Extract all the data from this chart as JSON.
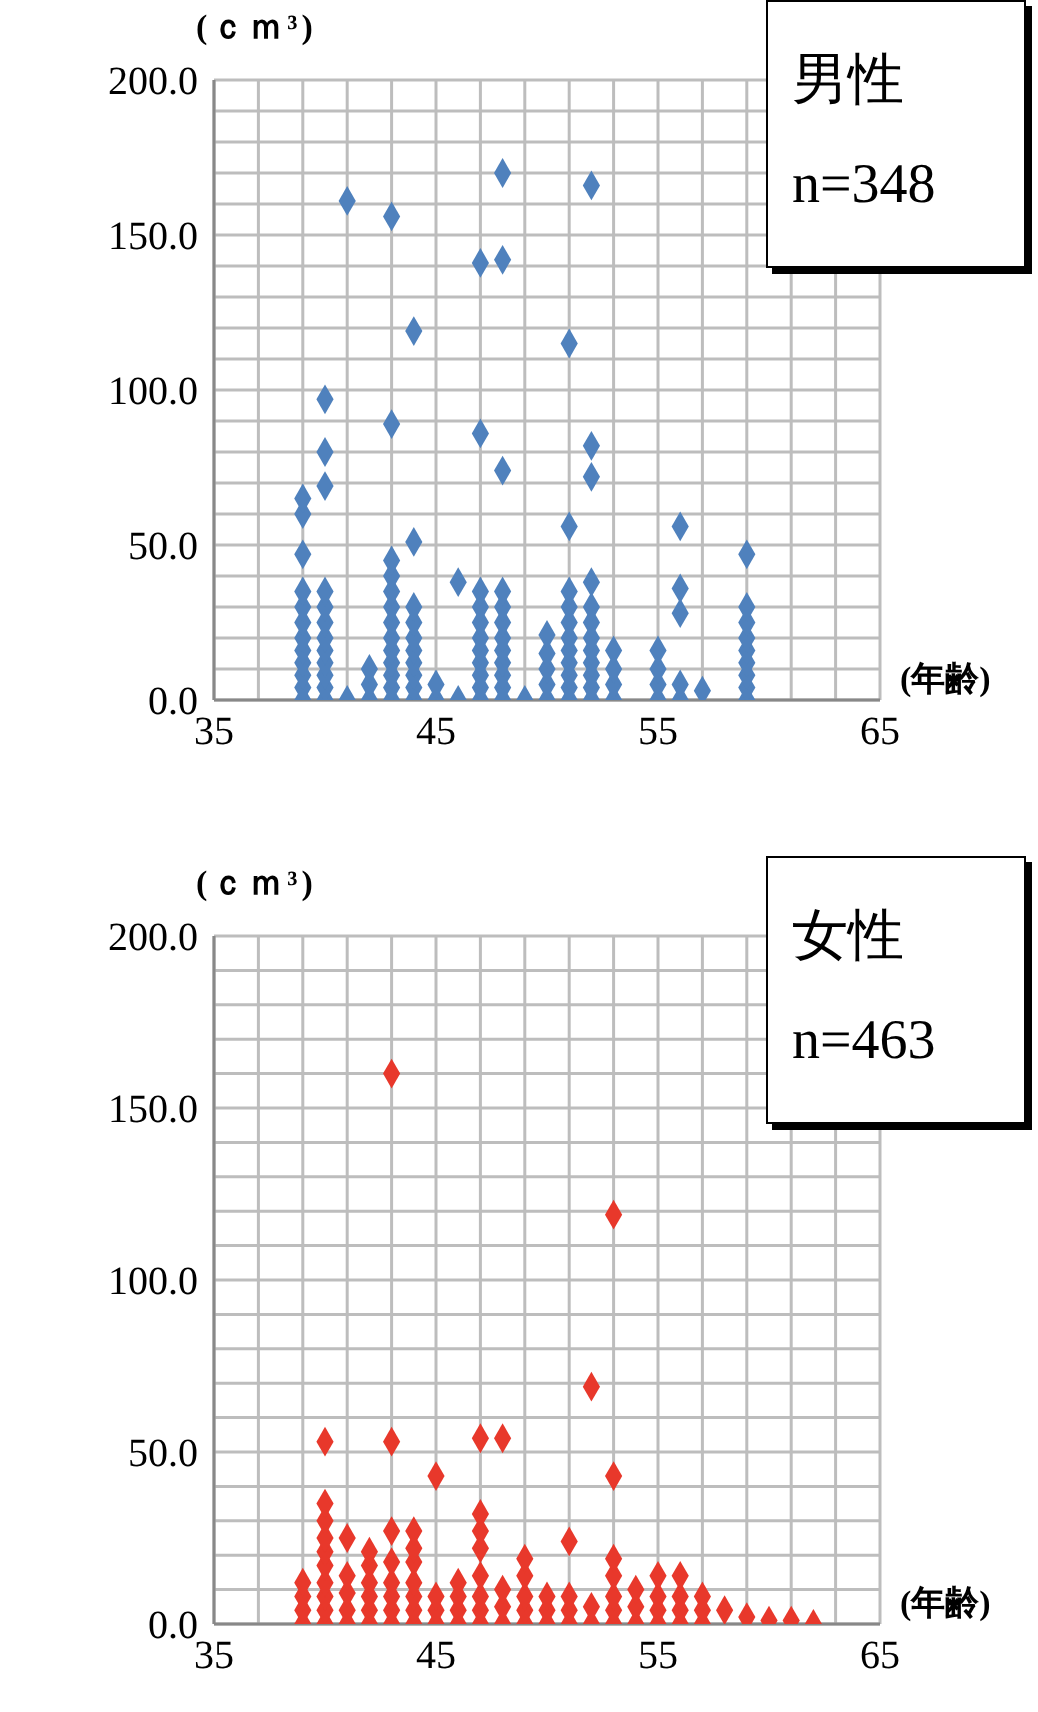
{
  "chart_data": [
    {
      "type": "scatter",
      "ylabel": "(ｃｍ³)",
      "xlabel": "(年齢)",
      "annotations": [
        "男性",
        "n=348"
      ],
      "marker": "diamond",
      "grid": true,
      "xlim": [
        35,
        65
      ],
      "xticks": [
        35,
        {
          "value": 37,
          "label": null
        },
        {
          "value": 39,
          "label": null
        },
        {
          "value": 41,
          "label": null
        },
        {
          "value": 43,
          "label": null
        },
        45,
        {
          "value": 47,
          "label": null
        },
        {
          "value": 49,
          "label": null
        },
        {
          "value": 51,
          "label": null
        },
        {
          "value": 53,
          "label": null
        },
        55,
        {
          "value": 57,
          "label": null
        },
        {
          "value": 59,
          "label": null
        },
        {
          "value": 61,
          "label": null
        },
        {
          "value": 63,
          "label": null
        },
        65
      ],
      "ylim": [
        0,
        200
      ],
      "yticks": [
        {
          "value": 0,
          "label": "0.0"
        },
        {
          "value": 10,
          "label": null
        },
        {
          "value": 20,
          "label": null
        },
        {
          "value": 30,
          "label": null
        },
        {
          "value": 40,
          "label": null
        },
        {
          "value": 50,
          "label": "50.0"
        },
        {
          "value": 60,
          "label": null
        },
        {
          "value": 70,
          "label": null
        },
        {
          "value": 80,
          "label": null
        },
        {
          "value": 90,
          "label": null
        },
        {
          "value": 100,
          "label": "100.0"
        },
        {
          "value": 110,
          "label": null
        },
        {
          "value": 120,
          "label": null
        },
        {
          "value": 130,
          "label": null
        },
        {
          "value": 140,
          "label": null
        },
        {
          "value": 150,
          "label": "150.0"
        },
        {
          "value": 160,
          "label": null
        },
        {
          "value": 170,
          "label": null
        },
        {
          "value": 180,
          "label": null
        },
        {
          "value": 190,
          "label": null
        },
        {
          "value": 200,
          "label": "200.0"
        }
      ],
      "series": [
        {
          "color": "#4f81bd",
          "x": [
            39,
            39,
            39,
            39,
            39,
            39,
            39,
            39,
            39,
            39,
            39,
            39,
            40,
            40,
            40,
            40,
            40,
            40,
            40,
            40,
            40,
            40,
            40,
            40,
            41,
            41,
            42,
            42,
            42,
            43,
            43,
            43,
            43,
            43,
            43,
            43,
            43,
            43,
            43,
            43,
            43,
            43,
            44,
            44,
            44,
            44,
            44,
            44,
            44,
            44,
            44,
            44,
            45,
            45,
            46,
            46,
            47,
            47,
            47,
            47,
            47,
            47,
            47,
            47,
            47,
            47,
            47,
            48,
            48,
            48,
            48,
            48,
            48,
            48,
            48,
            48,
            48,
            48,
            48,
            49,
            50,
            50,
            50,
            50,
            50,
            51,
            51,
            51,
            51,
            51,
            51,
            51,
            51,
            51,
            51,
            51,
            52,
            52,
            52,
            52,
            52,
            52,
            52,
            52,
            52,
            52,
            52,
            52,
            53,
            53,
            53,
            53,
            55,
            55,
            55,
            55,
            56,
            56,
            56,
            56,
            56,
            57,
            59,
            59,
            59,
            59,
            59,
            59,
            59,
            59,
            59
          ],
          "values": [
            0,
            4,
            8,
            12,
            16,
            20,
            25,
            30,
            35,
            47,
            60,
            65,
            0,
            4,
            8,
            12,
            16,
            20,
            25,
            30,
            35,
            69,
            80,
            97,
            0,
            161,
            0,
            5,
            10,
            0,
            4,
            8,
            12,
            16,
            20,
            25,
            30,
            35,
            40,
            45,
            89,
            156,
            0,
            4,
            8,
            12,
            16,
            20,
            25,
            30,
            51,
            119,
            0,
            5,
            0,
            38,
            0,
            4,
            8,
            12,
            16,
            20,
            25,
            30,
            35,
            86,
            141,
            0,
            4,
            8,
            12,
            16,
            20,
            25,
            30,
            35,
            74,
            142,
            170,
            0,
            0,
            5,
            10,
            15,
            21,
            0,
            4,
            8,
            12,
            16,
            20,
            25,
            30,
            35,
            56,
            115,
            0,
            4,
            8,
            12,
            16,
            20,
            25,
            30,
            38,
            72,
            82,
            166,
            0,
            5,
            10,
            16,
            0,
            5,
            10,
            16,
            0,
            5,
            28,
            36,
            56,
            3,
            0,
            4,
            8,
            12,
            16,
            20,
            25,
            30,
            47
          ]
        }
      ]
    },
    {
      "type": "scatter",
      "ylabel": "(ｃｍ³)",
      "xlabel": "(年齢)",
      "annotations": [
        "女性",
        "n=463"
      ],
      "marker": "diamond",
      "grid": true,
      "xlim": [
        35,
        65
      ],
      "xticks": [
        35,
        {
          "value": 37,
          "label": null
        },
        {
          "value": 39,
          "label": null
        },
        {
          "value": 41,
          "label": null
        },
        {
          "value": 43,
          "label": null
        },
        45,
        {
          "value": 47,
          "label": null
        },
        {
          "value": 49,
          "label": null
        },
        {
          "value": 51,
          "label": null
        },
        {
          "value": 53,
          "label": null
        },
        55,
        {
          "value": 57,
          "label": null
        },
        {
          "value": 59,
          "label": null
        },
        {
          "value": 61,
          "label": null
        },
        {
          "value": 63,
          "label": null
        },
        65
      ],
      "ylim": [
        0,
        200
      ],
      "yticks": [
        {
          "value": 0,
          "label": "0.0"
        },
        {
          "value": 10,
          "label": null
        },
        {
          "value": 20,
          "label": null
        },
        {
          "value": 30,
          "label": null
        },
        {
          "value": 40,
          "label": null
        },
        {
          "value": 50,
          "label": "50.0"
        },
        {
          "value": 60,
          "label": null
        },
        {
          "value": 70,
          "label": null
        },
        {
          "value": 80,
          "label": null
        },
        {
          "value": 90,
          "label": null
        },
        {
          "value": 100,
          "label": "100.0"
        },
        {
          "value": 110,
          "label": null
        },
        {
          "value": 120,
          "label": null
        },
        {
          "value": 130,
          "label": null
        },
        {
          "value": 140,
          "label": null
        },
        {
          "value": 150,
          "label": "150.0"
        },
        {
          "value": 160,
          "label": null
        },
        {
          "value": 170,
          "label": null
        },
        {
          "value": 180,
          "label": null
        },
        {
          "value": 190,
          "label": null
        },
        {
          "value": 200,
          "label": "200.0"
        }
      ],
      "series": [
        {
          "color": "#e8382b",
          "x": [
            39,
            39,
            39,
            39,
            40,
            40,
            40,
            40,
            40,
            40,
            40,
            40,
            40,
            40,
            41,
            41,
            41,
            41,
            41,
            42,
            42,
            42,
            42,
            42,
            42,
            43,
            43,
            43,
            43,
            43,
            43,
            43,
            43,
            44,
            44,
            44,
            44,
            44,
            44,
            44,
            45,
            45,
            45,
            45,
            46,
            46,
            46,
            46,
            47,
            47,
            47,
            47,
            47,
            47,
            47,
            47,
            48,
            48,
            48,
            48,
            49,
            49,
            49,
            49,
            49,
            50,
            50,
            50,
            51,
            51,
            51,
            51,
            52,
            52,
            52,
            53,
            53,
            53,
            53,
            53,
            53,
            53,
            54,
            54,
            54,
            55,
            55,
            55,
            55,
            56,
            56,
            56,
            56,
            57,
            57,
            57,
            58,
            59,
            60,
            61,
            62
          ],
          "values": [
            0,
            4,
            8,
            12,
            0,
            4,
            8,
            12,
            17,
            21,
            25,
            30,
            35,
            53,
            0,
            4,
            9,
            14,
            25,
            0,
            4,
            8,
            12,
            17,
            21,
            0,
            4,
            8,
            12,
            18,
            27,
            53,
            160,
            0,
            4,
            8,
            12,
            18,
            22,
            27,
            0,
            4,
            8,
            43,
            0,
            4,
            8,
            12,
            0,
            4,
            8,
            14,
            22,
            27,
            32,
            54,
            0,
            5,
            10,
            54,
            0,
            4,
            8,
            14,
            19,
            0,
            4,
            8,
            0,
            4,
            8,
            24,
            0,
            5,
            69,
            0,
            4,
            8,
            14,
            19,
            43,
            119,
            0,
            5,
            10,
            0,
            4,
            8,
            14,
            0,
            4,
            8,
            14,
            0,
            4,
            8,
            4,
            2,
            1,
            1,
            0
          ]
        }
      ]
    }
  ]
}
